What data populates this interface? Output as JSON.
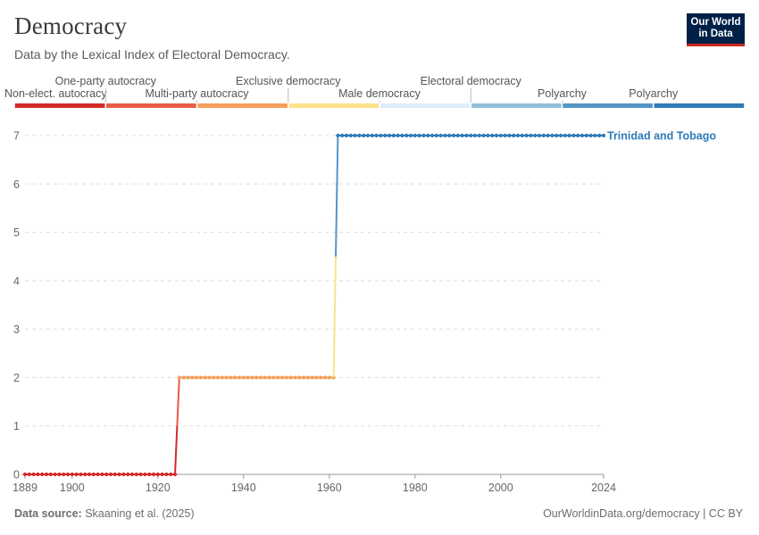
{
  "header": {
    "title": "Democracy",
    "subtitle": "Data by the Lexical Index of Electoral Democracy."
  },
  "logo": {
    "line1": "Our World",
    "line2": "in Data"
  },
  "footer": {
    "source_label": "Data source:",
    "source_value": "Skaaning et al. (2025)",
    "attribution": "OurWorldinData.org/democracy | CC BY"
  },
  "colors": {
    "series": "#2f7ab8",
    "grid": "#dddddd",
    "axis": "#666666"
  },
  "chart_data": {
    "type": "line",
    "title": "Democracy",
    "subtitle": "Data by the Lexical Index of Electoral Democracy.",
    "xlim": [
      1889,
      2024
    ],
    "ylim": [
      0,
      7
    ],
    "x_ticks": [
      "1889",
      "1900",
      "1920",
      "1940",
      "1960",
      "1980",
      "2000",
      "2024"
    ],
    "y_ticks": [
      "0",
      "1",
      "2",
      "3",
      "4",
      "5",
      "6",
      "7"
    ],
    "grid": "horizontal dashed",
    "legend_position": "top (color scale)",
    "color_scale": [
      {
        "label": "Non-elect. autocracy",
        "color": "#d42a2a"
      },
      {
        "label": "One-party autocracy",
        "color": "#e65d43"
      },
      {
        "label": "Multi-party autocracy",
        "color": "#f59d5a"
      },
      {
        "label": "Exclusive democracy",
        "color": "#fde18b"
      },
      {
        "label": "Male democracy",
        "color": "#ddeef8"
      },
      {
        "label": "Electoral democracy",
        "color": "#92c0dc"
      },
      {
        "label": "Polyarchy",
        "color": "#5595c8"
      },
      {
        "label": "",
        "color": "#2f7ab8"
      }
    ],
    "series": [
      {
        "name": "Trinidad and Tobago",
        "segments": [
          {
            "x_start": 1889,
            "x_end": 1924,
            "value": 0
          },
          {
            "x_start": 1925,
            "x_end": 1961,
            "value": 2
          },
          {
            "x_start": 1962,
            "x_end": 2024,
            "value": 7
          }
        ]
      }
    ]
  }
}
